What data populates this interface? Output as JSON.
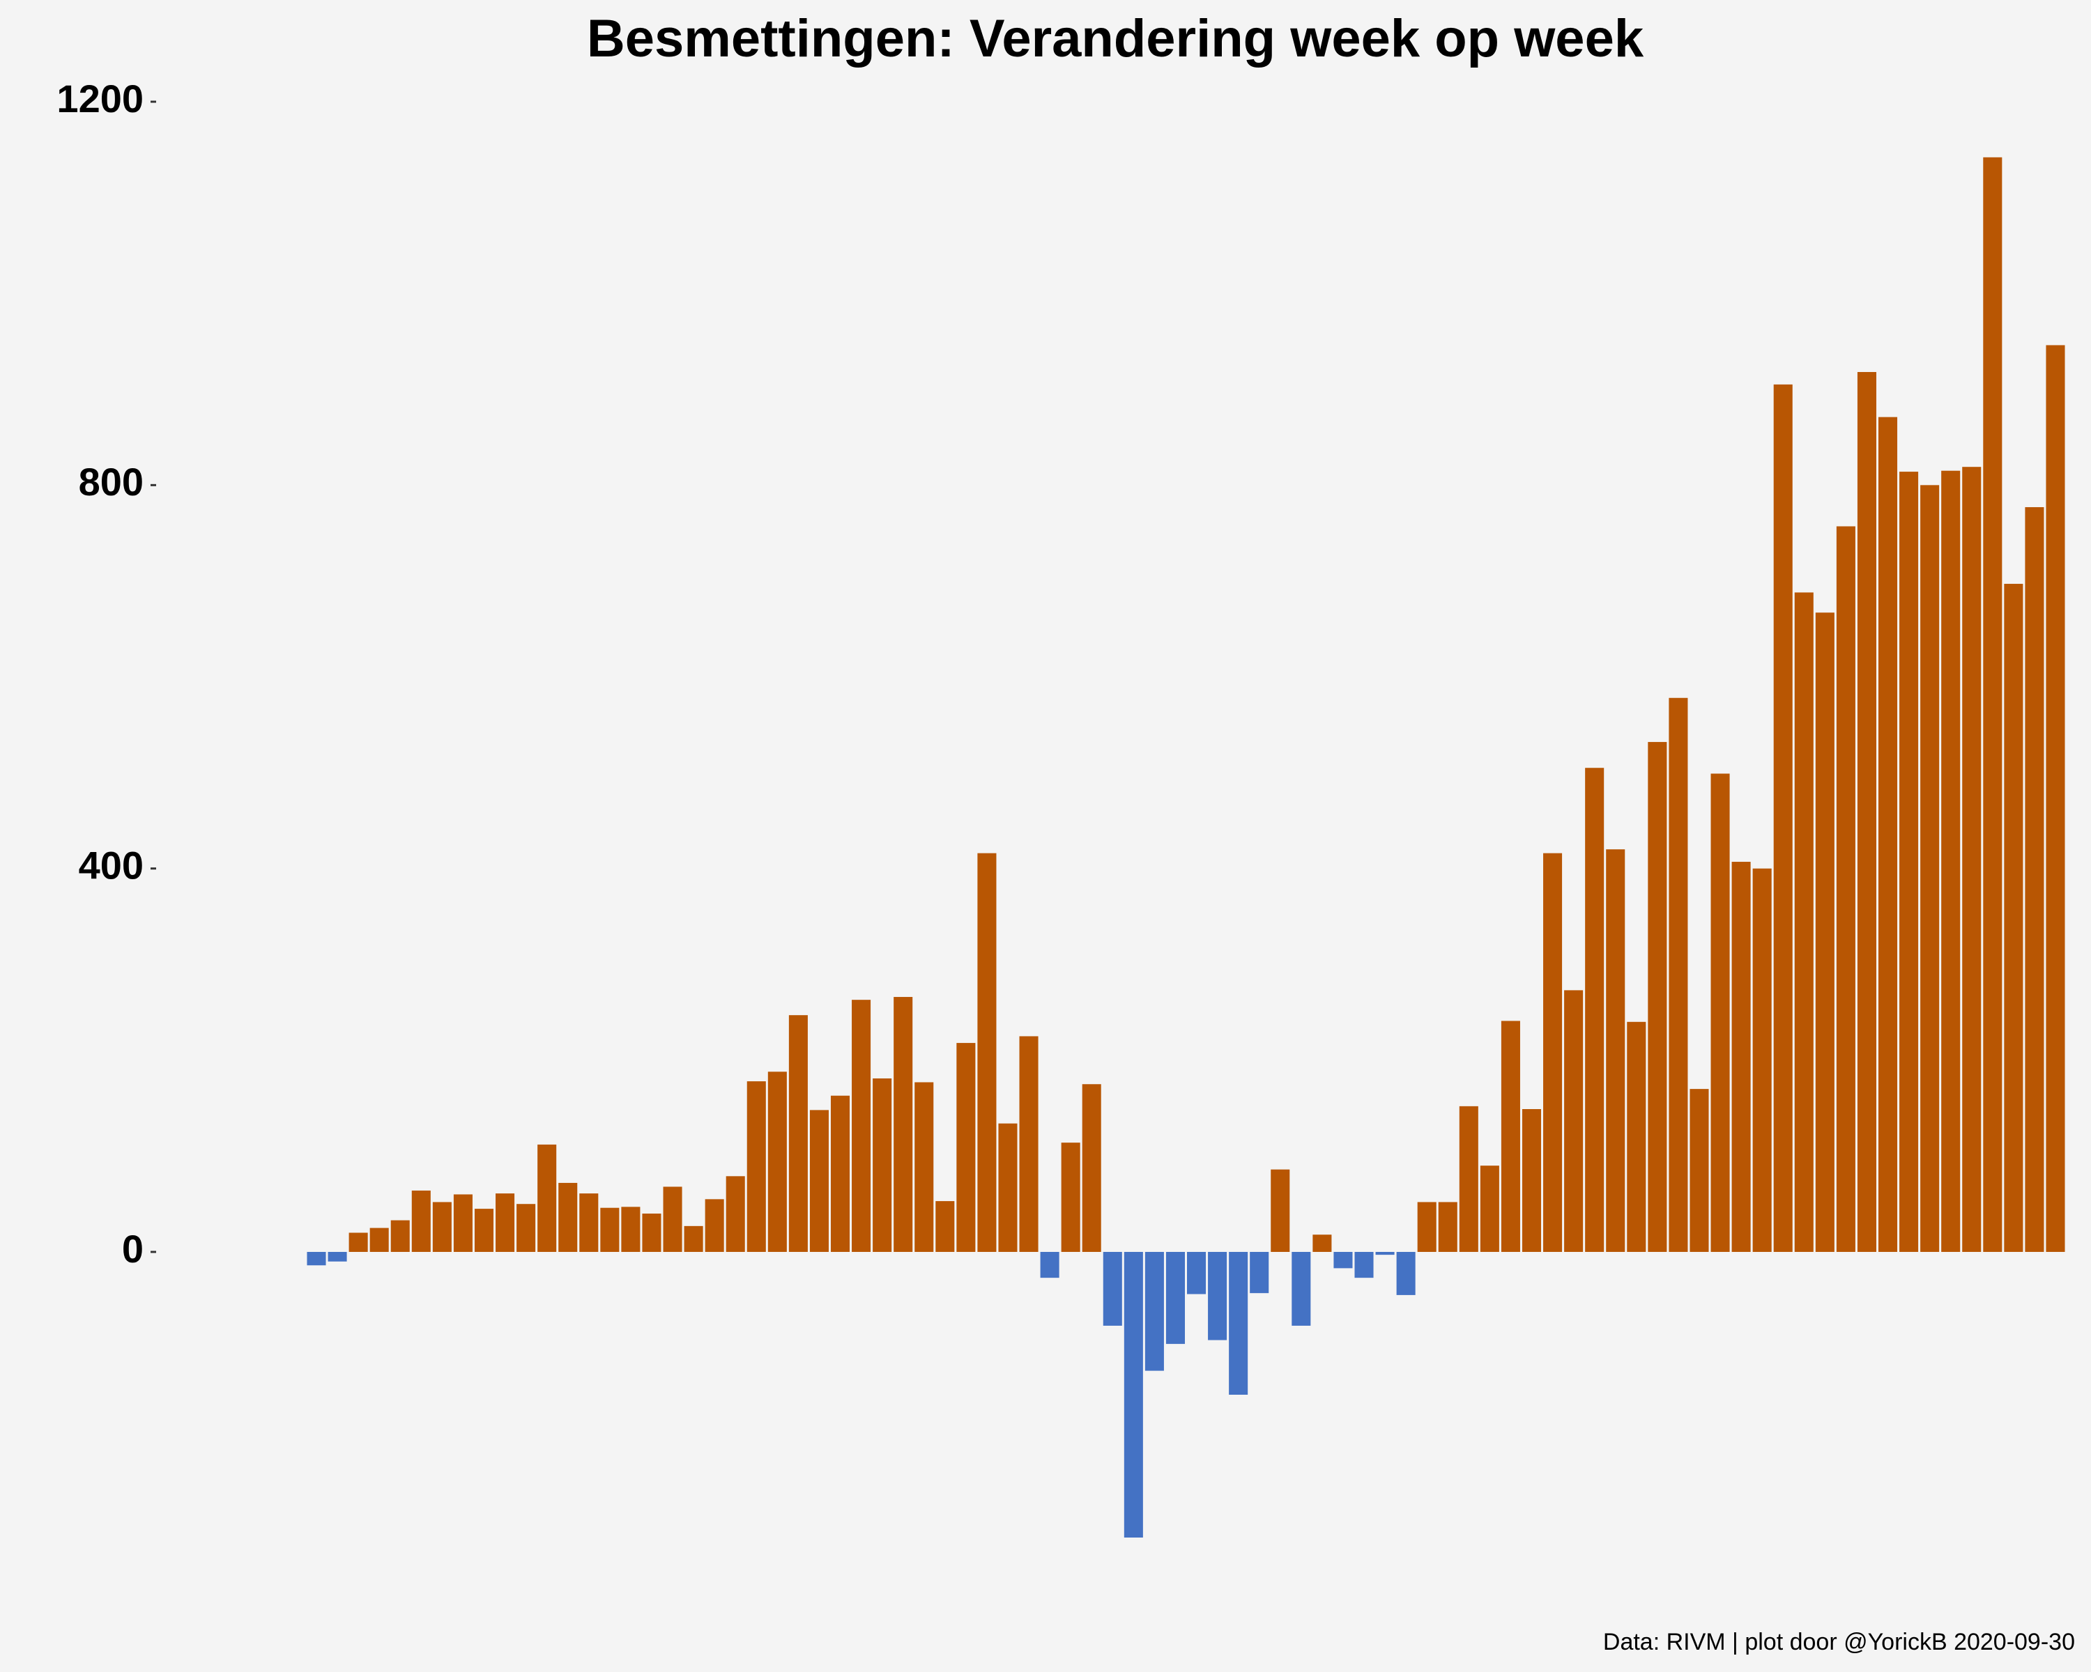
{
  "chart_data": {
    "type": "bar",
    "title": "Besmettingen: Verandering week op week",
    "caption": "Data: RIVM | plot door @YorickB  2020-09-30",
    "xlabel": "",
    "ylabel": "",
    "ylim": [
      -420,
      1200
    ],
    "yticks": [
      0,
      400,
      800,
      1200
    ],
    "grid": false,
    "colors": {
      "positive": "#b85603",
      "negative": "#4472c4",
      "background": "#f4f4f4"
    },
    "values": [
      -14,
      -10,
      20,
      25,
      33,
      64,
      52,
      60,
      45,
      61,
      50,
      112,
      72,
      61,
      46,
      47,
      40,
      68,
      27,
      55,
      79,
      178,
      188,
      247,
      148,
      163,
      263,
      181,
      266,
      177,
      53,
      218,
      416,
      134,
      225,
      -27,
      114,
      175,
      -77,
      -298,
      -124,
      -96,
      -44,
      -92,
      -149,
      -43,
      86,
      -77,
      18,
      -17,
      -27,
      -3,
      -45,
      52,
      52,
      152,
      90,
      241,
      149,
      416,
      273,
      505,
      420,
      240,
      532,
      578,
      170,
      499,
      407,
      400,
      905,
      688,
      667,
      757,
      918,
      871,
      814,
      800,
      815,
      819,
      1142,
      697,
      777,
      946
    ]
  }
}
